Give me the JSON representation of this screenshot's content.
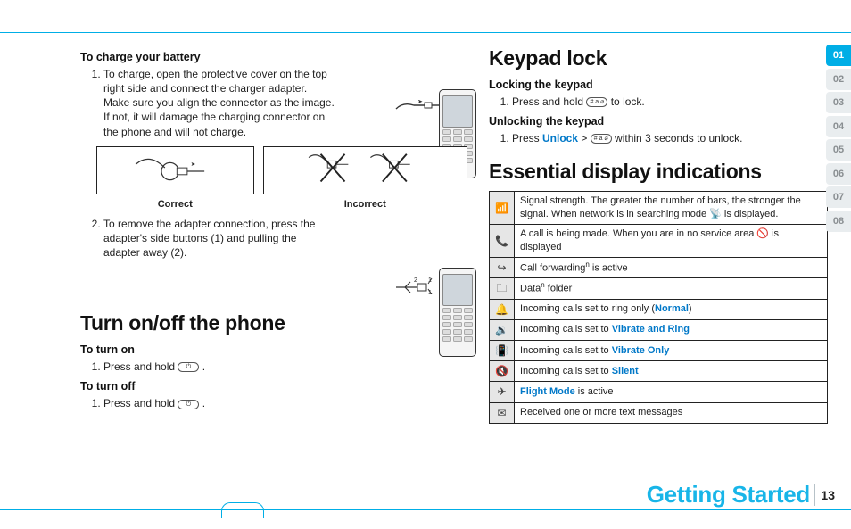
{
  "colors": {
    "accent": "#00aee6",
    "link": "#0078c8",
    "tab_idle_bg": "#e9edef",
    "tab_idle_fg": "#8a8f92",
    "table_icon_bg": "#e6e6e6",
    "rule": "#00aee6"
  },
  "left": {
    "charge": {
      "heading": "To charge your battery",
      "step1": "To charge, open the protective cover on the top right side and connect the charger adapter. Make sure you align the connector as the image. If not, it will damage the charging connector on the phone and will not charge.",
      "correct_label": "Correct",
      "incorrect_label": "Incorrect",
      "step2": "To remove the adapter connection, press the adapter's side buttons (1) and pulling the adapter away (2)."
    },
    "power": {
      "heading": "Turn on/off the phone",
      "on_heading": "To turn on",
      "on_step": "Press and hold ",
      "off_heading": "To turn off",
      "off_step": "Press and hold "
    }
  },
  "right": {
    "keypad": {
      "heading": "Keypad lock",
      "lock_heading": "Locking the keypad",
      "lock_step_pre": "Press and hold ",
      "lock_key_glyph": "# a ⌀",
      "lock_step_post": " to lock.",
      "unlock_heading": "Unlocking the keypad",
      "unlock_step_pre": "Press ",
      "unlock_link": "Unlock",
      "unlock_step_mid": " > ",
      "unlock_step_post": " within 3 seconds to unlock."
    },
    "display": {
      "heading": "Essential display indications",
      "rows": [
        {
          "icon": "📶",
          "text_pre": "Signal strength. The greater the number of bars, the stronger the signal. When network is in searching mode ",
          "icon2": "📡",
          "text_post": " is displayed."
        },
        {
          "icon": "📞",
          "text_pre": "A call is being made. When you are in no service area ",
          "icon2": "🚫",
          "text_post": " is displayed"
        },
        {
          "icon": "↪",
          "text_pre": "Call forwarding",
          "sup": "n",
          "text_post": " is active"
        },
        {
          "icon": "🗀",
          "text_pre": "Data",
          "sup": "n",
          "text_post": " folder"
        },
        {
          "icon": "🔔",
          "text_pre": "Incoming calls set to ring only (",
          "link": "Normal",
          "text_post": ")"
        },
        {
          "icon": "🔉",
          "text_pre": "Incoming calls set to ",
          "link": "Vibrate and Ring"
        },
        {
          "icon": "📳",
          "text_pre": "Incoming calls set to ",
          "link": "Vibrate Only"
        },
        {
          "icon": "🔇",
          "text_pre": "Incoming calls set to ",
          "link": "Silent"
        },
        {
          "icon": "✈",
          "link": "Flight Mode",
          "text_post": " is active"
        },
        {
          "icon": "✉",
          "text_pre": "Received one or more text messages"
        }
      ]
    }
  },
  "side_tabs": {
    "items": [
      "01",
      "02",
      "03",
      "04",
      "05",
      "06",
      "07",
      "08"
    ],
    "active_index": 0
  },
  "footer": {
    "section": "Getting Started",
    "page": "13"
  }
}
